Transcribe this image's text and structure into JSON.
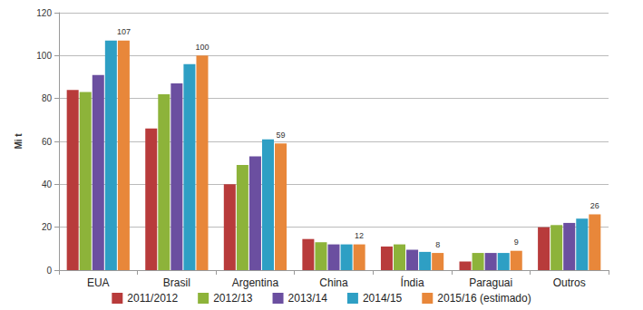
{
  "chart_data": {
    "type": "bar",
    "y_label": "Mi t",
    "categories": [
      "EUA",
      "Brasil",
      "Argentina",
      "China",
      "Índia",
      "Paraguai",
      "Outros"
    ],
    "series": [
      {
        "name": "2011/2012",
        "color": "#b83b3b",
        "values": [
          84,
          66,
          40,
          14.5,
          11,
          4,
          20
        ]
      },
      {
        "name": "2012/13",
        "color": "#8db33a",
        "values": [
          83,
          82,
          49,
          13,
          12,
          8,
          21
        ]
      },
      {
        "name": "2013/14",
        "color": "#6b4fa0",
        "values": [
          91,
          87,
          53,
          12,
          9.5,
          8,
          22
        ]
      },
      {
        "name": "2014/15",
        "color": "#2e9fc4",
        "values": [
          107,
          96,
          61,
          12,
          8.5,
          8,
          24
        ]
      },
      {
        "name": "2015/16 (estimado)",
        "color": "#e8873a",
        "values": [
          107,
          100,
          59,
          12,
          8,
          9,
          26
        ],
        "data_labels": true
      }
    ],
    "ylim": [
      0,
      120
    ],
    "yticks": [
      0,
      20,
      40,
      60,
      80,
      100,
      120
    ],
    "grid": true,
    "legend": "bottom"
  }
}
